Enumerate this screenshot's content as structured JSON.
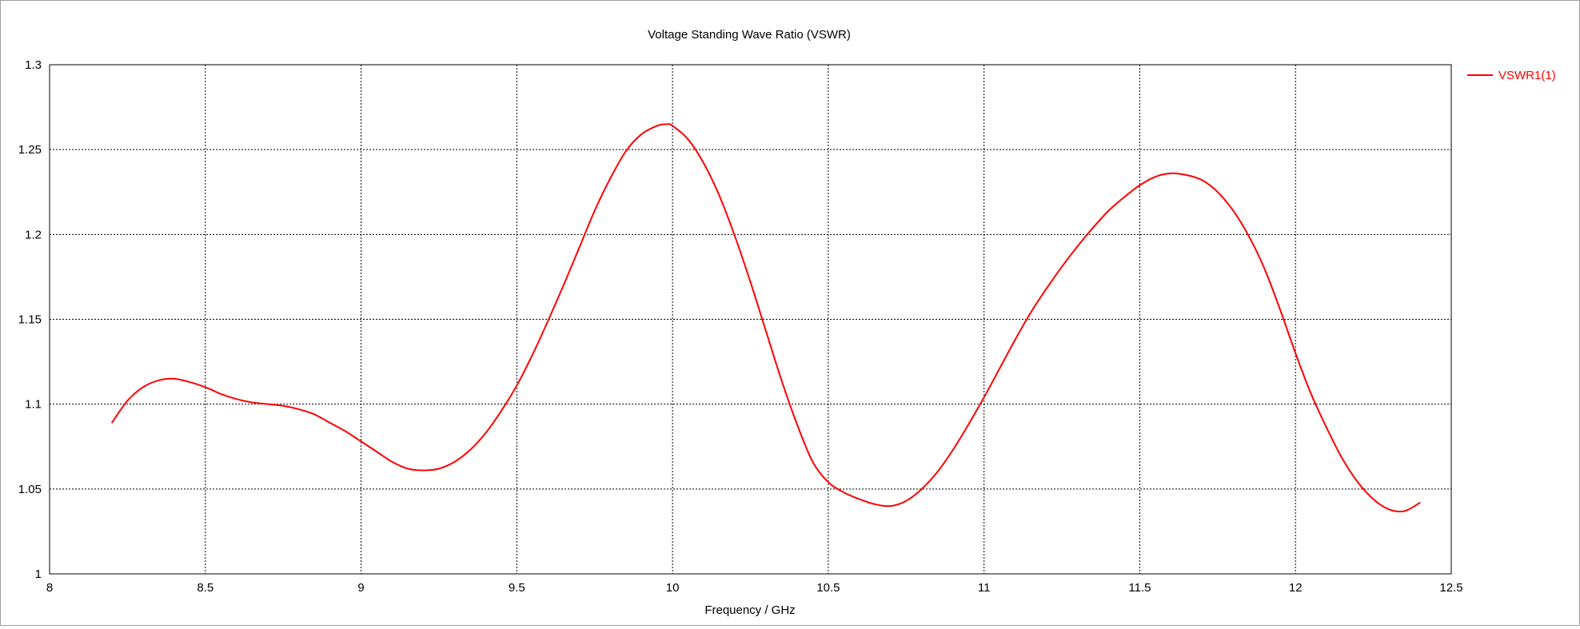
{
  "chart_data": {
    "type": "line",
    "title": "Voltage Standing Wave Ratio (VSWR)",
    "xlabel": "Frequency / GHz",
    "ylabel": "",
    "xlim": [
      8,
      12.5
    ],
    "ylim": [
      1,
      1.3
    ],
    "xticks": [
      "8",
      "8.5",
      "9",
      "9.5",
      "10",
      "10.5",
      "11",
      "11.5",
      "12",
      "12.5"
    ],
    "yticks": [
      "1",
      "1.05",
      "1.1",
      "1.15",
      "1.2",
      "1.25",
      "1.3"
    ],
    "grid": true,
    "legend_position": "top-right",
    "series": [
      {
        "name": "VSWR1(1)",
        "color": "#ff0000",
        "x": [
          8.2,
          8.25,
          8.3,
          8.35,
          8.4,
          8.45,
          8.5,
          8.55,
          8.6,
          8.65,
          8.7,
          8.75,
          8.8,
          8.85,
          8.9,
          8.95,
          9.0,
          9.05,
          9.1,
          9.15,
          9.2,
          9.25,
          9.3,
          9.35,
          9.4,
          9.45,
          9.5,
          9.55,
          9.6,
          9.65,
          9.7,
          9.75,
          9.8,
          9.85,
          9.9,
          9.95,
          9.98,
          10.0,
          10.05,
          10.1,
          10.15,
          10.2,
          10.25,
          10.3,
          10.35,
          10.4,
          10.45,
          10.5,
          10.55,
          10.6,
          10.65,
          10.7,
          10.75,
          10.8,
          10.85,
          10.9,
          10.95,
          11.0,
          11.05,
          11.1,
          11.15,
          11.2,
          11.25,
          11.3,
          11.35,
          11.4,
          11.45,
          11.5,
          11.55,
          11.6,
          11.65,
          11.7,
          11.75,
          11.8,
          11.85,
          11.9,
          11.95,
          12.0,
          12.05,
          12.1,
          12.15,
          12.2,
          12.25,
          12.3,
          12.35,
          12.4
        ],
        "values": [
          1.089,
          1.102,
          1.11,
          1.114,
          1.115,
          1.113,
          1.11,
          1.106,
          1.103,
          1.101,
          1.1,
          1.099,
          1.097,
          1.094,
          1.089,
          1.084,
          1.078,
          1.072,
          1.066,
          1.062,
          1.061,
          1.062,
          1.066,
          1.073,
          1.083,
          1.096,
          1.111,
          1.129,
          1.149,
          1.17,
          1.192,
          1.214,
          1.233,
          1.249,
          1.259,
          1.264,
          1.265,
          1.264,
          1.256,
          1.242,
          1.223,
          1.199,
          1.172,
          1.143,
          1.114,
          1.088,
          1.066,
          1.054,
          1.048,
          1.044,
          1.041,
          1.04,
          1.043,
          1.05,
          1.06,
          1.073,
          1.088,
          1.104,
          1.121,
          1.138,
          1.154,
          1.168,
          1.181,
          1.193,
          1.204,
          1.214,
          1.222,
          1.229,
          1.234,
          1.236,
          1.235,
          1.232,
          1.225,
          1.214,
          1.199,
          1.18,
          1.156,
          1.13,
          1.106,
          1.086,
          1.068,
          1.054,
          1.044,
          1.038,
          1.037,
          1.042
        ]
      }
    ]
  }
}
